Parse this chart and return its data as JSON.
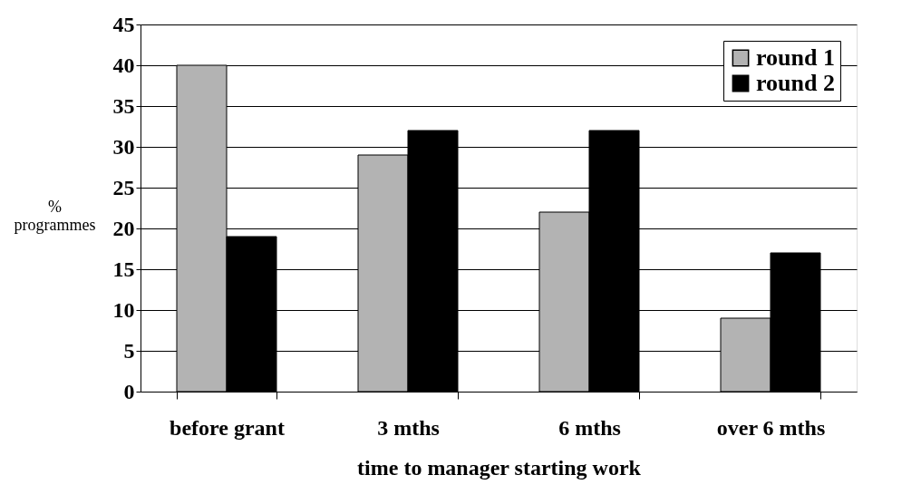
{
  "chart_data": {
    "type": "bar",
    "xlabel": "time to manager starting work",
    "ylabel": "% programmes",
    "categories": [
      "before grant",
      "3 mths",
      "6 mths",
      "over 6 mths"
    ],
    "series": [
      {
        "name": "round 1",
        "color": "#b3b3b3",
        "values": [
          40,
          29,
          22,
          9
        ]
      },
      {
        "name": "round 2",
        "color": "#000000",
        "values": [
          19,
          32,
          32,
          17
        ]
      }
    ],
    "ylim": [
      0,
      45
    ],
    "yticks": [
      0,
      5,
      10,
      15,
      20,
      25,
      30,
      35,
      40,
      45
    ],
    "grid": "y",
    "legend": "top right"
  }
}
